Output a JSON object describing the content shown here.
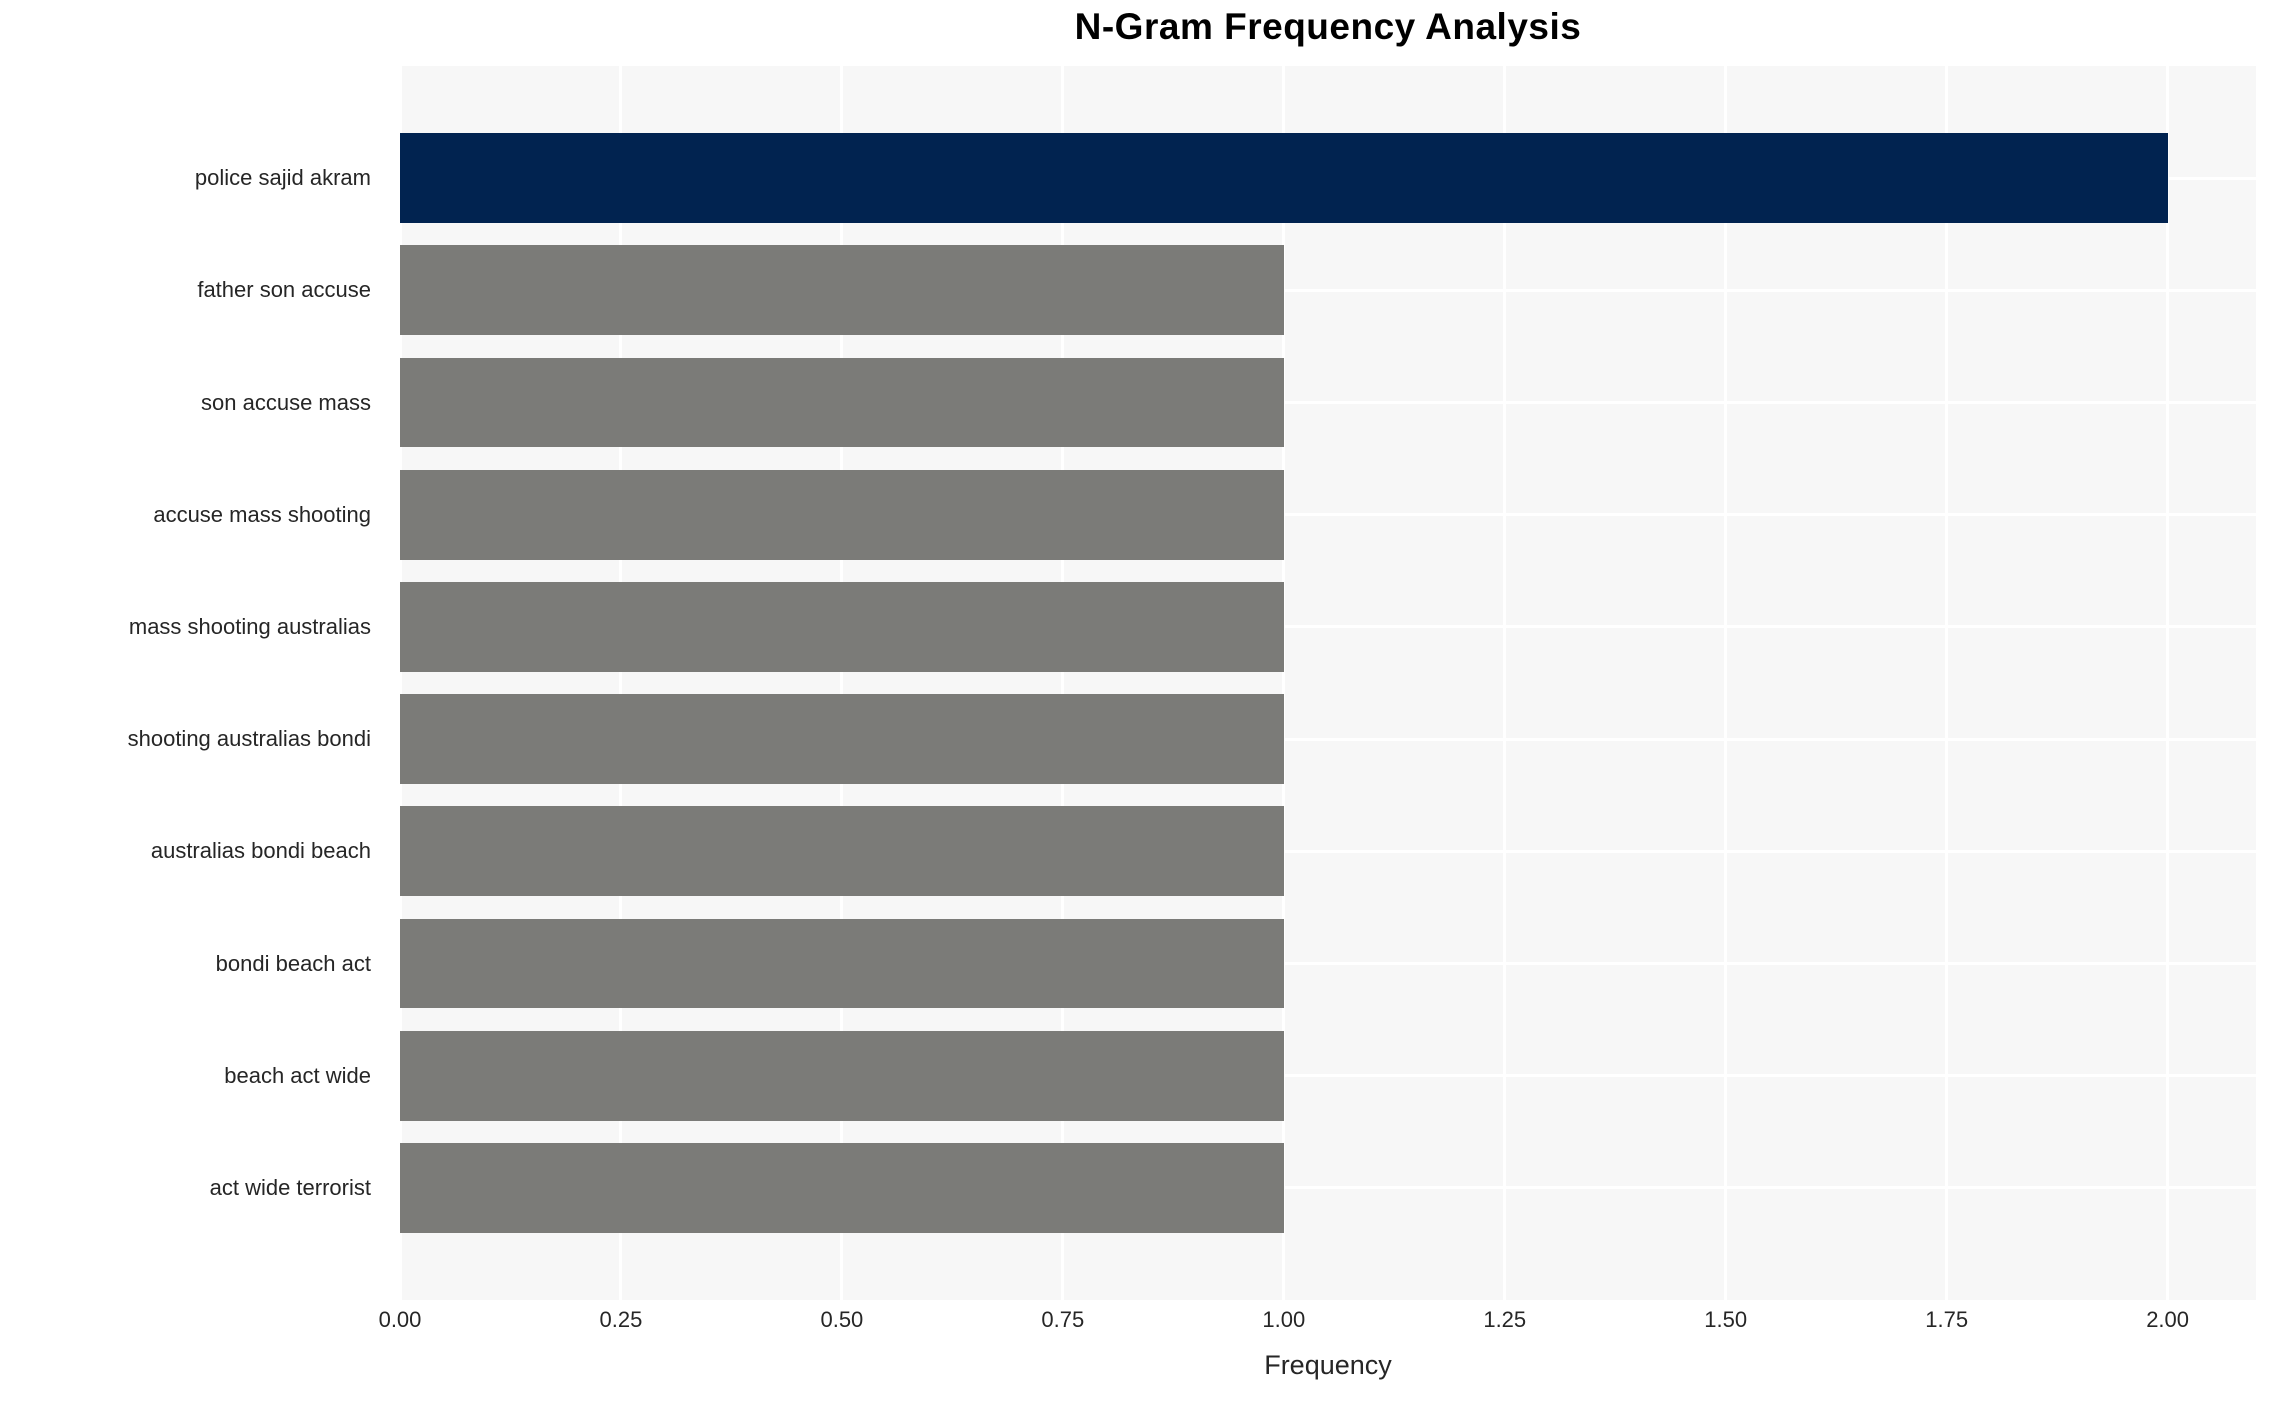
{
  "chart_data": {
    "type": "bar",
    "orientation": "horizontal",
    "title": "N-Gram Frequency Analysis",
    "xlabel": "Frequency",
    "ylabel": "",
    "categories": [
      "police sajid akram",
      "father son accuse",
      "son accuse mass",
      "accuse mass shooting",
      "mass shooting australias",
      "shooting australias bondi",
      "australias bondi beach",
      "bondi beach act",
      "beach act wide",
      "act wide terrorist"
    ],
    "values": [
      2,
      1,
      1,
      1,
      1,
      1,
      1,
      1,
      1,
      1
    ],
    "xlim": [
      0,
      2.1
    ],
    "xticks": [
      0,
      0.25,
      0.5,
      0.75,
      1.0,
      1.25,
      1.5,
      1.75,
      2.0
    ],
    "xtick_labels": [
      "0.00",
      "0.25",
      "0.50",
      "0.75",
      "1.00",
      "1.25",
      "1.50",
      "1.75",
      "2.00"
    ],
    "bar_colors": [
      "#012350",
      "#7b7b78",
      "#7b7b78",
      "#7b7b78",
      "#7b7b78",
      "#7b7b78",
      "#7b7b78",
      "#7b7b78",
      "#7b7b78",
      "#7b7b78"
    ],
    "colors": {
      "highlight_bar": "#012350",
      "default_bar": "#7b7b78",
      "plot_background": "#f7f7f7",
      "gridline": "#ffffff",
      "tick_text": "#262626",
      "title_text": "#000000"
    },
    "grid": true,
    "legend": false
  }
}
